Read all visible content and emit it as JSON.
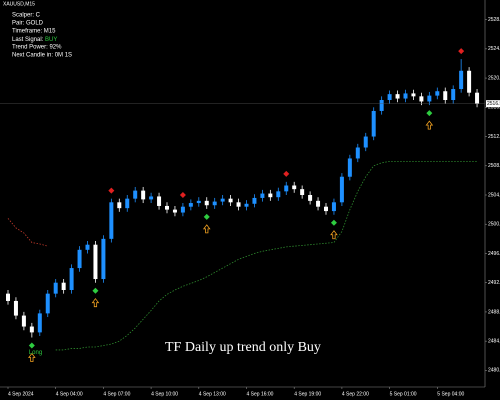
{
  "chart_data": {
    "type": "candlestick",
    "symbol": "XAUUSD,M15",
    "info": {
      "scalper": "Scalper: C",
      "pair": "Pair: GOLD",
      "timeframe": "Timeframe: M15",
      "last_signal_label": "Last Signal: ",
      "last_signal": "BUY",
      "trend_power": "Trend Power: 92%",
      "next_candle": "Next Candle in: 0M 1S"
    },
    "annotation": "TF Daily up trend only Buy",
    "up_color": "#1e90ff",
    "down_color": "#ffffff",
    "open": [
      2490.5,
      2489.5,
      2487.5,
      2486.0,
      2485.2,
      2487.8,
      2490.5,
      2492.0,
      2491.0,
      2494.0,
      2496.5,
      2497.2,
      2492.5,
      2498.0,
      2503.0,
      2502.2,
      2503.5,
      2504.6,
      2503.4,
      2503.8,
      2502.5,
      2502.0,
      2501.6,
      2502.4,
      2502.9,
      2503.2,
      2502.6,
      2503.1,
      2503.5,
      2503.0,
      2502.4,
      2502.8,
      2503.6,
      2504.2,
      2503.7,
      2504.5,
      2505.3,
      2504.8,
      2504.0,
      2503.2,
      2502.4,
      2501.8,
      2503.0,
      2506.5,
      2509.0,
      2510.5,
      2512.0,
      2515.5,
      2517.0,
      2517.8,
      2517.2,
      2517.9,
      2517.5,
      2516.8,
      2517.6,
      2518.2,
      2517.0,
      2518.5,
      2521.0,
      2518.0
    ],
    "high": [
      2491.0,
      2490.0,
      2488.0,
      2486.5,
      2488.3,
      2491.0,
      2492.5,
      2492.5,
      2494.5,
      2497.0,
      2497.7,
      2497.7,
      2498.5,
      2503.5,
      2503.5,
      2504.0,
      2505.1,
      2505.1,
      2504.3,
      2504.3,
      2503.0,
      2502.5,
      2502.9,
      2503.4,
      2503.7,
      2503.7,
      2503.6,
      2504.0,
      2504.0,
      2503.5,
      2503.3,
      2504.1,
      2504.7,
      2504.7,
      2505.0,
      2505.8,
      2505.8,
      2505.3,
      2504.5,
      2503.7,
      2502.9,
      2503.5,
      2507.0,
      2509.5,
      2511.0,
      2512.5,
      2516.0,
      2517.5,
      2518.3,
      2518.3,
      2518.4,
      2518.4,
      2518.0,
      2518.1,
      2518.7,
      2518.7,
      2519.0,
      2522.6,
      2521.5,
      2518.5
    ],
    "low": [
      2489.0,
      2487.0,
      2485.5,
      2484.5,
      2484.7,
      2487.3,
      2490.0,
      2490.5,
      2490.5,
      2493.5,
      2496.0,
      2492.0,
      2492.0,
      2497.5,
      2501.7,
      2501.7,
      2503.0,
      2502.9,
      2502.9,
      2502.0,
      2501.5,
      2501.1,
      2501.1,
      2501.9,
      2502.4,
      2502.1,
      2502.1,
      2502.6,
      2502.5,
      2501.9,
      2501.9,
      2502.3,
      2503.1,
      2503.2,
      2503.2,
      2504.0,
      2504.3,
      2503.5,
      2502.7,
      2501.9,
      2501.3,
      2501.3,
      2502.5,
      2506.0,
      2508.5,
      2510.0,
      2511.5,
      2515.0,
      2516.5,
      2516.7,
      2516.7,
      2517.0,
      2516.3,
      2516.3,
      2517.1,
      2516.5,
      2516.5,
      2518.0,
      2517.5,
      2516.0
    ],
    "close": [
      2489.5,
      2487.5,
      2486.0,
      2485.2,
      2487.8,
      2490.5,
      2492.0,
      2491.0,
      2494.0,
      2496.5,
      2497.2,
      2492.5,
      2498.0,
      2503.0,
      2502.2,
      2503.5,
      2504.6,
      2503.4,
      2503.8,
      2502.5,
      2502.0,
      2501.6,
      2502.4,
      2502.9,
      2503.2,
      2502.6,
      2503.1,
      2503.5,
      2503.0,
      2502.4,
      2502.8,
      2503.6,
      2504.2,
      2503.7,
      2504.5,
      2505.3,
      2504.8,
      2504.0,
      2503.2,
      2502.4,
      2501.8,
      2503.0,
      2506.5,
      2509.0,
      2510.5,
      2512.0,
      2515.5,
      2517.0,
      2517.8,
      2517.2,
      2517.9,
      2517.5,
      2516.8,
      2517.6,
      2518.2,
      2517.0,
      2518.5,
      2521.0,
      2518.0,
      2516.5
    ],
    "resistance_line": {
      "color": "#c0392b",
      "values": [
        2500.8,
        2499.5,
        2498.8,
        2497.5,
        2497.3,
        2497.0,
        null,
        null,
        null,
        null,
        null,
        null,
        null,
        null,
        null,
        null,
        null,
        null,
        null,
        null,
        null,
        null,
        null,
        null,
        null,
        null,
        null,
        null,
        null,
        null,
        null,
        null,
        null,
        null,
        null,
        null,
        null,
        null,
        null,
        null,
        null,
        null,
        null,
        null,
        null,
        null,
        null,
        null,
        null,
        null,
        null,
        null,
        null,
        null,
        null,
        null,
        null,
        null,
        null,
        null
      ]
    },
    "support_line": {
      "color": "#2e8b2e",
      "values": [
        null,
        null,
        null,
        null,
        null,
        null,
        2482.8,
        2482.8,
        2483.0,
        2483.0,
        2483.2,
        2483.2,
        2483.4,
        2483.6,
        2484.0,
        2484.8,
        2485.8,
        2487.0,
        2488.2,
        2489.5,
        2490.4,
        2491.0,
        2491.5,
        2491.9,
        2492.3,
        2492.8,
        2493.4,
        2494.0,
        2494.6,
        2495.2,
        2495.6,
        2496.0,
        2496.3,
        2496.5,
        2496.7,
        2496.9,
        2497.0,
        2497.1,
        2497.2,
        2497.3,
        2497.4,
        2497.5,
        2499.0,
        2502.0,
        2504.5,
        2506.5,
        2508.0,
        2508.4,
        2508.6,
        2508.6,
        2508.6,
        2508.6,
        2508.6,
        2508.6,
        2508.6,
        2508.6,
        2508.6,
        2508.6,
        2508.6,
        2508.6
      ]
    },
    "signals": [
      {
        "index": 3,
        "type": "buy",
        "label": "Long"
      },
      {
        "index": 11,
        "type": "buy"
      },
      {
        "index": 13,
        "type": "sell"
      },
      {
        "index": 22,
        "type": "sell"
      },
      {
        "index": 25,
        "type": "buy"
      },
      {
        "index": 35,
        "type": "sell"
      },
      {
        "index": 41,
        "type": "buy"
      },
      {
        "index": 53,
        "type": "buy"
      },
      {
        "index": 57,
        "type": "sell"
      }
    ],
    "ylim": [
      2478,
      2530
    ],
    "yticks": [
      {
        "value": 2480,
        "label": "2480.00"
      },
      {
        "value": 2484,
        "label": "2484.00"
      },
      {
        "value": 2488,
        "label": "2488.00"
      },
      {
        "value": 2492,
        "label": "2492.00"
      },
      {
        "value": 2496,
        "label": "2496.00"
      },
      {
        "value": 2500,
        "label": "2500.00"
      },
      {
        "value": 2504,
        "label": "2504.00"
      },
      {
        "value": 2508,
        "label": "2508.00"
      },
      {
        "value": 2512,
        "label": "2512.00"
      },
      {
        "value": 2516,
        "label": "2516.00"
      },
      {
        "value": 2520,
        "label": "2520.00"
      },
      {
        "value": 2524,
        "label": "2524.00"
      },
      {
        "value": 2528,
        "label": "2528.00"
      }
    ],
    "current_price": {
      "value": 2516.5,
      "label": "2516.50"
    },
    "x_labels": [
      {
        "index": 0,
        "label": "4 Sep 2024"
      },
      {
        "index": 6,
        "label": "4 Sep 04:00"
      },
      {
        "index": 12,
        "label": "4 Sep 07:00"
      },
      {
        "index": 18,
        "label": "4 Sep 10:00"
      },
      {
        "index": 24,
        "label": "4 Sep 13:00"
      },
      {
        "index": 30,
        "label": "4 Sep 16:00"
      },
      {
        "index": 36,
        "label": "4 Sep 19:00"
      },
      {
        "index": 42,
        "label": "4 Sep 22:00"
      },
      {
        "index": 48,
        "label": "5 Sep 01:00"
      },
      {
        "index": 54,
        "label": "5 Sep 04:00"
      }
    ]
  }
}
